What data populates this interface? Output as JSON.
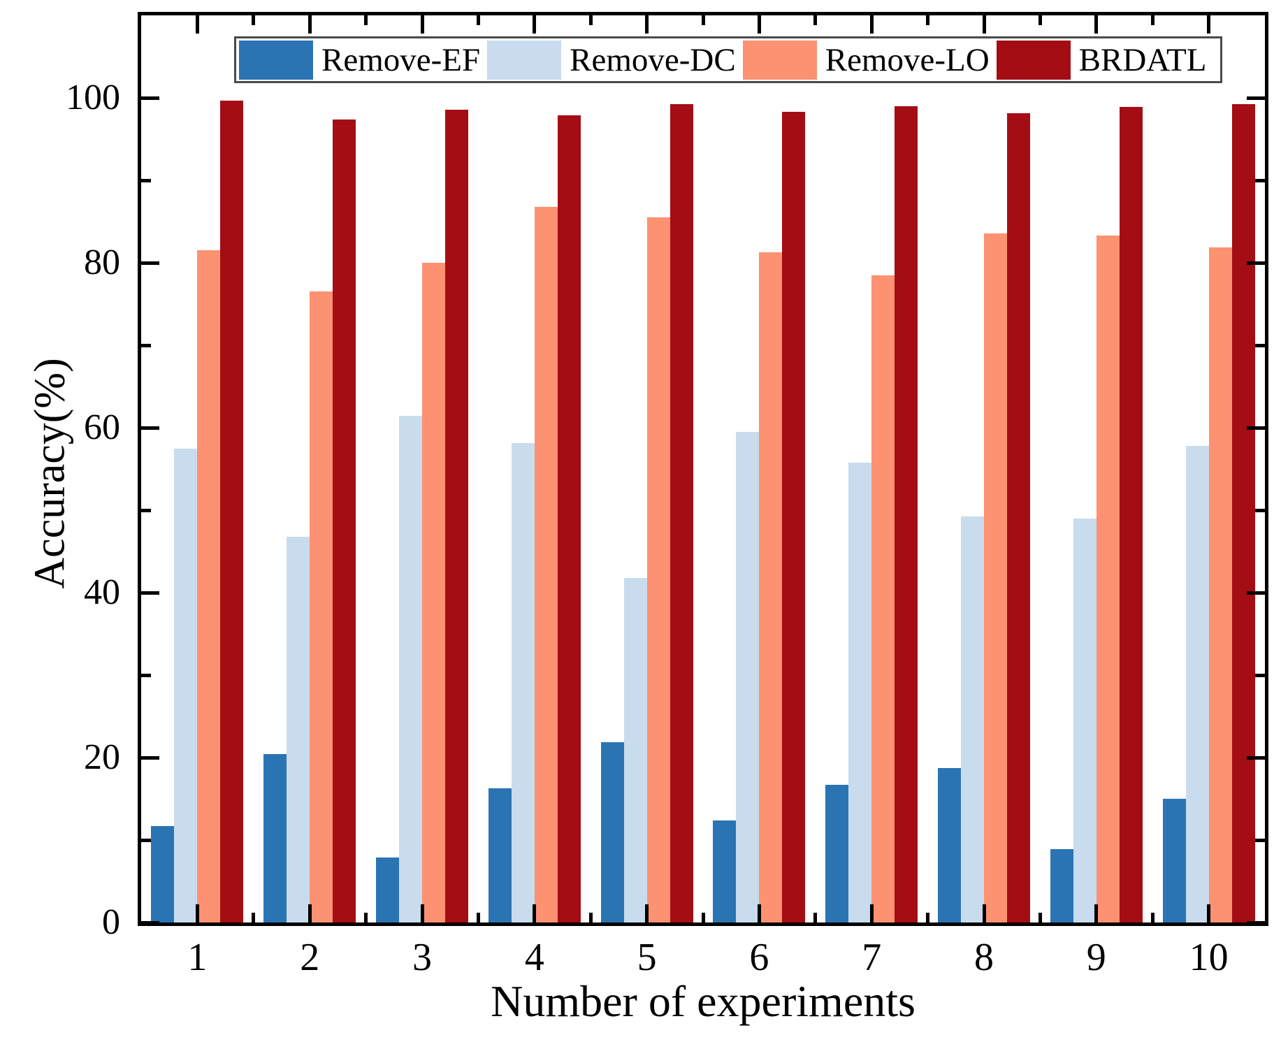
{
  "chart_data": {
    "type": "bar",
    "title": "",
    "xlabel": "Number of experiments",
    "ylabel": "Accuracy(%)",
    "categories": [
      "1",
      "2",
      "3",
      "4",
      "5",
      "6",
      "7",
      "8",
      "9",
      "10"
    ],
    "series": [
      {
        "name": "Remove-EF",
        "color": "#2b74b4",
        "values": [
          11.7,
          20.4,
          7.9,
          16.3,
          21.9,
          12.4,
          16.7,
          18.7,
          8.9,
          15.0
        ]
      },
      {
        "name": "Remove-DC",
        "color": "#c8dcee",
        "values": [
          57.5,
          46.8,
          61.4,
          58.1,
          41.8,
          59.5,
          55.8,
          49.2,
          49.0,
          57.8
        ]
      },
      {
        "name": "Remove-LO",
        "color": "#fc9272",
        "values": [
          81.5,
          76.5,
          80.0,
          86.8,
          85.5,
          81.3,
          78.5,
          83.6,
          83.3,
          81.9
        ]
      },
      {
        "name": "BRDATL",
        "color": "#a50d15",
        "values": [
          99.7,
          97.4,
          98.6,
          97.9,
          99.2,
          98.3,
          99.0,
          98.1,
          98.9,
          99.2
        ]
      }
    ],
    "ylim": [
      0,
      110
    ],
    "y_major_ticks": [
      0,
      20,
      40,
      60,
      80,
      100
    ],
    "y_minor_ticks": [
      10,
      30,
      50,
      70,
      90
    ],
    "grid": false,
    "legend_position": "top-center",
    "axis_color": "#000000",
    "legend_border_color": "#4a4a4a"
  }
}
